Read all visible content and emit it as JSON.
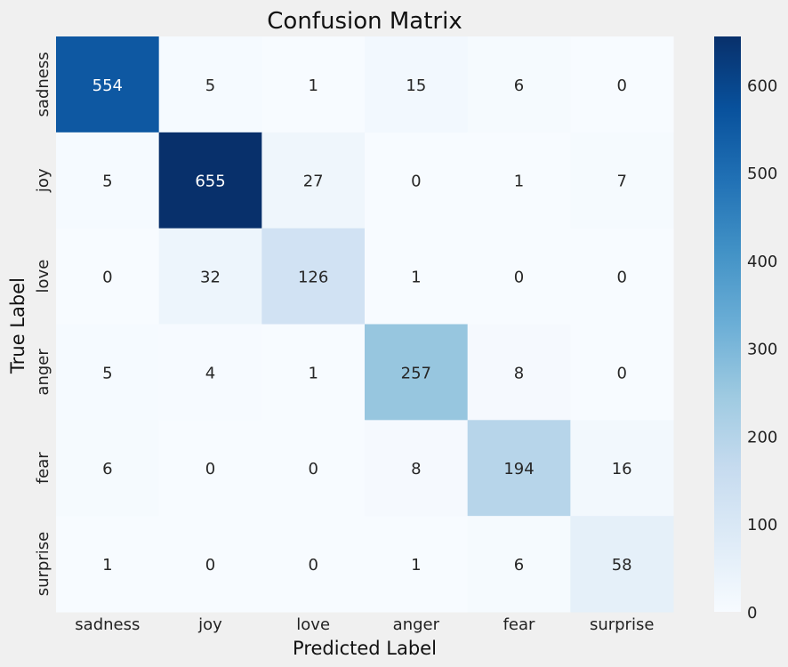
{
  "chart_data": {
    "type": "heatmap",
    "title": "Confusion Matrix",
    "xlabel": "Predicted Label",
    "ylabel": "True Label",
    "x_categories": [
      "sadness",
      "joy",
      "love",
      "anger",
      "fear",
      "surprise"
    ],
    "y_categories": [
      "sadness",
      "joy",
      "love",
      "anger",
      "fear",
      "surprise"
    ],
    "values": [
      [
        554,
        5,
        1,
        15,
        6,
        0
      ],
      [
        5,
        655,
        27,
        0,
        1,
        7
      ],
      [
        0,
        32,
        126,
        1,
        0,
        0
      ],
      [
        5,
        4,
        1,
        257,
        8,
        0
      ],
      [
        6,
        0,
        0,
        8,
        194,
        16
      ],
      [
        1,
        0,
        0,
        1,
        6,
        58
      ]
    ],
    "colormap": "Blues",
    "colorbar": {
      "vmin": 0,
      "vmax": 655,
      "ticks": [
        0,
        100,
        200,
        300,
        400,
        500,
        600
      ]
    },
    "annotate": true,
    "grid": false
  },
  "colors": {
    "background": "#f0f0f0",
    "cmap_stops": [
      "#f7fbff",
      "#deebf7",
      "#c6dbef",
      "#9ecae1",
      "#6baed6",
      "#4292c6",
      "#2171b5",
      "#08519c",
      "#08306b"
    ],
    "text_dark": "#262626",
    "text_light": "#ffffff"
  }
}
